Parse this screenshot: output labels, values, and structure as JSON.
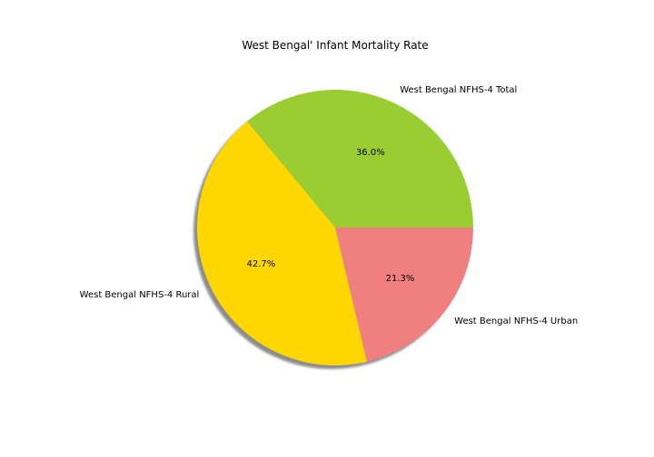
{
  "chart_data": {
    "type": "pie",
    "title": "West Bengal' Infant Mortality Rate",
    "shadow": true,
    "start_angle_deg": 0,
    "direction": "counterclockwise",
    "slices": [
      {
        "label": "West Bengal NFHS-4 Total",
        "percent": 36.0,
        "percent_label": "36.0%",
        "color": "#9acd32"
      },
      {
        "label": "West Bengal NFHS-4 Rural",
        "percent": 42.7,
        "percent_label": "42.7%",
        "color": "#ffd700"
      },
      {
        "label": "West Bengal NFHS-4 Urban",
        "percent": 21.3,
        "percent_label": "21.3%",
        "color": "#f08080"
      }
    ]
  }
}
